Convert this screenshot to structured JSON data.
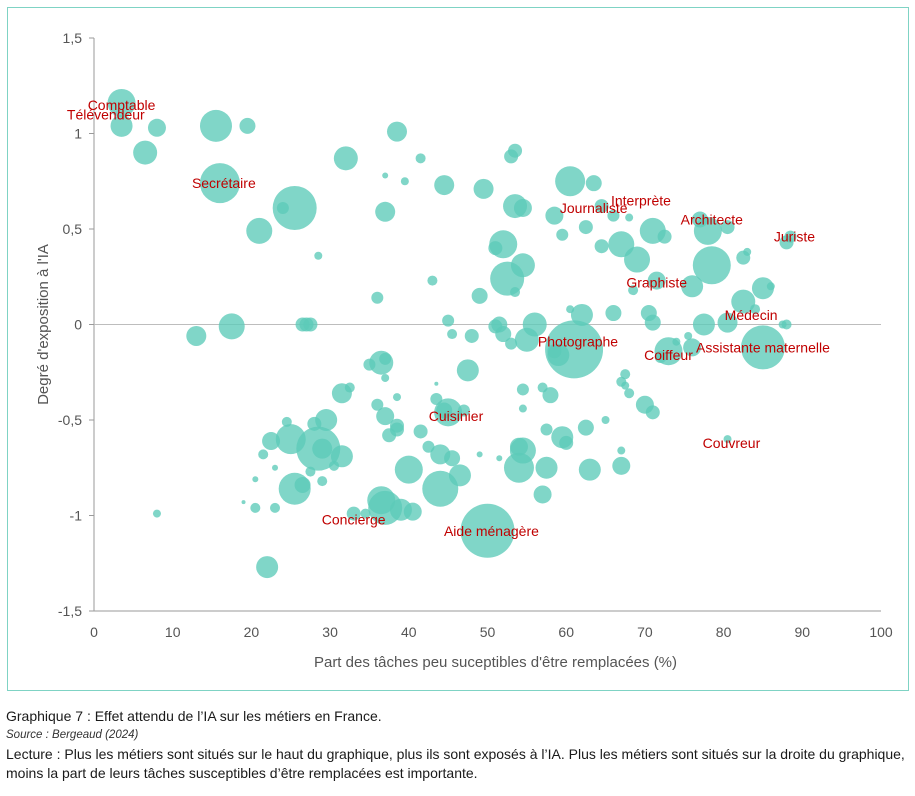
{
  "chart_data": {
    "type": "scatter",
    "variant": "bubble",
    "xlabel": "Part des tâches peu suceptibles d'être remplacées (%)",
    "ylabel": "Degré d'exposition à l'IA",
    "xlim": [
      0,
      100
    ],
    "ylim": [
      -1.5,
      1.5
    ],
    "x_ticks": [
      "0",
      "10",
      "20",
      "30",
      "40",
      "50",
      "60",
      "70",
      "80",
      "90",
      "100"
    ],
    "y_ticks": [
      "1,5",
      "1",
      "0,5",
      "0",
      "-0,5",
      "-1",
      "-1,5"
    ],
    "grid": false,
    "zero_line": true,
    "color": "#5ccbb8",
    "label_color": "#c00000",
    "labels": [
      {
        "text": "Comptable",
        "x": 3.5,
        "y": 1.15
      },
      {
        "text": "Télévendeur",
        "x": 1.5,
        "y": 1.1
      },
      {
        "text": "Secrétaire",
        "x": 16.5,
        "y": 0.74
      },
      {
        "text": "Interprète",
        "x": 69.5,
        "y": 0.65
      },
      {
        "text": "Journaliste",
        "x": 63.5,
        "y": 0.61
      },
      {
        "text": "Architecte",
        "x": 78.5,
        "y": 0.55
      },
      {
        "text": "Juriste",
        "x": 89,
        "y": 0.46
      },
      {
        "text": "Graphiste",
        "x": 71.5,
        "y": 0.22
      },
      {
        "text": "Médecin",
        "x": 83.5,
        "y": 0.05
      },
      {
        "text": "Photographe",
        "x": 61.5,
        "y": -0.09
      },
      {
        "text": "Coiffeur",
        "x": 73,
        "y": -0.16
      },
      {
        "text": "Assistante maternelle",
        "x": 85,
        "y": -0.12
      },
      {
        "text": "Cuisinier",
        "x": 46,
        "y": -0.48
      },
      {
        "text": "Couvreur",
        "x": 81,
        "y": -0.62
      },
      {
        "text": "Concierge",
        "x": 33,
        "y": -1.02
      },
      {
        "text": "Aide ménagère",
        "x": 50.5,
        "y": -1.08
      }
    ],
    "points": [
      {
        "x": 3.5,
        "y": 1.16,
        "r": 14
      },
      {
        "x": 3.5,
        "y": 1.04,
        "r": 11
      },
      {
        "x": 8,
        "y": 1.03,
        "r": 9
      },
      {
        "x": 6.5,
        "y": 0.9,
        "r": 12
      },
      {
        "x": 15.5,
        "y": 1.04,
        "r": 16
      },
      {
        "x": 19.5,
        "y": 1.04,
        "r": 8
      },
      {
        "x": 16,
        "y": 0.74,
        "r": 20
      },
      {
        "x": 25.5,
        "y": 0.61,
        "r": 22
      },
      {
        "x": 24,
        "y": 0.61,
        "r": 6
      },
      {
        "x": 21,
        "y": 0.49,
        "r": 13
      },
      {
        "x": 28.5,
        "y": 0.36,
        "r": 4
      },
      {
        "x": 32,
        "y": 0.87,
        "r": 12
      },
      {
        "x": 38.5,
        "y": 1.01,
        "r": 10
      },
      {
        "x": 41.5,
        "y": 0.87,
        "r": 5
      },
      {
        "x": 37,
        "y": 0.78,
        "r": 3
      },
      {
        "x": 39.5,
        "y": 0.75,
        "r": 4
      },
      {
        "x": 37,
        "y": 0.59,
        "r": 10
      },
      {
        "x": 36,
        "y": 0.14,
        "r": 6
      },
      {
        "x": 43,
        "y": 0.23,
        "r": 5
      },
      {
        "x": 44.5,
        "y": 0.73,
        "r": 10
      },
      {
        "x": 49.5,
        "y": 0.71,
        "r": 10
      },
      {
        "x": 53,
        "y": 0.88,
        "r": 7
      },
      {
        "x": 53.5,
        "y": 0.91,
        "r": 7
      },
      {
        "x": 53.5,
        "y": 0.62,
        "r": 12
      },
      {
        "x": 54.5,
        "y": 0.61,
        "r": 9
      },
      {
        "x": 52,
        "y": 0.42,
        "r": 14
      },
      {
        "x": 51,
        "y": 0.4,
        "r": 7
      },
      {
        "x": 52.5,
        "y": 0.24,
        "r": 17
      },
      {
        "x": 54.5,
        "y": 0.31,
        "r": 12
      },
      {
        "x": 53.5,
        "y": 0.17,
        "r": 5
      },
      {
        "x": 49,
        "y": 0.15,
        "r": 8
      },
      {
        "x": 58.5,
        "y": 0.57,
        "r": 9
      },
      {
        "x": 60.5,
        "y": 0.75,
        "r": 15
      },
      {
        "x": 63.5,
        "y": 0.74,
        "r": 8
      },
      {
        "x": 64.5,
        "y": 0.62,
        "r": 7
      },
      {
        "x": 66,
        "y": 0.57,
        "r": 6
      },
      {
        "x": 68,
        "y": 0.56,
        "r": 4
      },
      {
        "x": 67,
        "y": 0.42,
        "r": 13
      },
      {
        "x": 64.5,
        "y": 0.41,
        "r": 7
      },
      {
        "x": 59.5,
        "y": 0.47,
        "r": 6
      },
      {
        "x": 62.5,
        "y": 0.51,
        "r": 7
      },
      {
        "x": 69,
        "y": 0.34,
        "r": 13
      },
      {
        "x": 71,
        "y": 0.49,
        "r": 13
      },
      {
        "x": 72.5,
        "y": 0.46,
        "r": 7
      },
      {
        "x": 71.5,
        "y": 0.23,
        "r": 9
      },
      {
        "x": 68.5,
        "y": 0.18,
        "r": 5
      },
      {
        "x": 76,
        "y": 0.2,
        "r": 11
      },
      {
        "x": 77,
        "y": 0.55,
        "r": 8
      },
      {
        "x": 78,
        "y": 0.49,
        "r": 14
      },
      {
        "x": 80.5,
        "y": 0.51,
        "r": 7
      },
      {
        "x": 78.5,
        "y": 0.31,
        "r": 19
      },
      {
        "x": 82.5,
        "y": 0.35,
        "r": 7
      },
      {
        "x": 83,
        "y": 0.38,
        "r": 4
      },
      {
        "x": 85,
        "y": 0.19,
        "r": 11
      },
      {
        "x": 82.5,
        "y": 0.12,
        "r": 12
      },
      {
        "x": 80.5,
        "y": 0.01,
        "r": 10
      },
      {
        "x": 77.5,
        "y": 0.0,
        "r": 11
      },
      {
        "x": 84,
        "y": 0.08,
        "r": 5
      },
      {
        "x": 86,
        "y": 0.2,
        "r": 4
      },
      {
        "x": 88,
        "y": 0.43,
        "r": 7
      },
      {
        "x": 88.5,
        "y": 0.46,
        "r": 6
      },
      {
        "x": 87.5,
        "y": 0.0,
        "r": 4
      },
      {
        "x": 88,
        "y": 0.0,
        "r": 5
      },
      {
        "x": 85,
        "y": -0.12,
        "r": 22
      },
      {
        "x": 76,
        "y": -0.12,
        "r": 9
      },
      {
        "x": 73,
        "y": -0.14,
        "r": 14
      },
      {
        "x": 72,
        "y": -0.17,
        "r": 6
      },
      {
        "x": 70.5,
        "y": 0.06,
        "r": 8
      },
      {
        "x": 71,
        "y": 0.01,
        "r": 8
      },
      {
        "x": 66,
        "y": 0.06,
        "r": 8
      },
      {
        "x": 62,
        "y": 0.05,
        "r": 11
      },
      {
        "x": 60.5,
        "y": 0.08,
        "r": 4
      },
      {
        "x": 61,
        "y": -0.13,
        "r": 29
      },
      {
        "x": 59,
        "y": -0.16,
        "r": 11
      },
      {
        "x": 58.5,
        "y": -0.14,
        "r": 7
      },
      {
        "x": 56,
        "y": 0.0,
        "r": 12
      },
      {
        "x": 55,
        "y": -0.08,
        "r": 12
      },
      {
        "x": 53,
        "y": -0.1,
        "r": 6
      },
      {
        "x": 52,
        "y": -0.05,
        "r": 8
      },
      {
        "x": 51.5,
        "y": 0.0,
        "r": 8
      },
      {
        "x": 51,
        "y": -0.01,
        "r": 7
      },
      {
        "x": 48,
        "y": -0.06,
        "r": 7
      },
      {
        "x": 45.5,
        "y": -0.05,
        "r": 5
      },
      {
        "x": 45,
        "y": 0.02,
        "r": 6
      },
      {
        "x": 47.5,
        "y": -0.24,
        "r": 11
      },
      {
        "x": 54.5,
        "y": -0.34,
        "r": 6
      },
      {
        "x": 54.5,
        "y": -0.44,
        "r": 4
      },
      {
        "x": 57,
        "y": -0.33,
        "r": 5
      },
      {
        "x": 58,
        "y": -0.37,
        "r": 8
      },
      {
        "x": 57.5,
        "y": -0.55,
        "r": 6
      },
      {
        "x": 59.5,
        "y": -0.59,
        "r": 11
      },
      {
        "x": 60,
        "y": -0.62,
        "r": 7
      },
      {
        "x": 62.5,
        "y": -0.54,
        "r": 8
      },
      {
        "x": 65,
        "y": -0.5,
        "r": 4
      },
      {
        "x": 67,
        "y": -0.3,
        "r": 5
      },
      {
        "x": 67.5,
        "y": -0.26,
        "r": 5
      },
      {
        "x": 67.5,
        "y": -0.32,
        "r": 4
      },
      {
        "x": 68,
        "y": -0.36,
        "r": 5
      },
      {
        "x": 70,
        "y": -0.42,
        "r": 9
      },
      {
        "x": 71,
        "y": -0.46,
        "r": 7
      },
      {
        "x": 67,
        "y": -0.66,
        "r": 4
      },
      {
        "x": 67,
        "y": -0.74,
        "r": 9
      },
      {
        "x": 63,
        "y": -0.76,
        "r": 11
      },
      {
        "x": 57.5,
        "y": -0.75,
        "r": 11
      },
      {
        "x": 54.5,
        "y": -0.66,
        "r": 13
      },
      {
        "x": 54,
        "y": -0.64,
        "r": 9
      },
      {
        "x": 54,
        "y": -0.75,
        "r": 15
      },
      {
        "x": 57,
        "y": -0.89,
        "r": 9
      },
      {
        "x": 51.5,
        "y": -0.7,
        "r": 3
      },
      {
        "x": 50,
        "y": -1.08,
        "r": 27
      },
      {
        "x": 45,
        "y": -0.46,
        "r": 14
      },
      {
        "x": 44.5,
        "y": -0.45,
        "r": 8
      },
      {
        "x": 47,
        "y": -0.45,
        "r": 6
      },
      {
        "x": 43.5,
        "y": -0.39,
        "r": 6
      },
      {
        "x": 43.5,
        "y": -0.31,
        "r": 2
      },
      {
        "x": 44,
        "y": -0.68,
        "r": 10
      },
      {
        "x": 45.5,
        "y": -0.7,
        "r": 8
      },
      {
        "x": 46.5,
        "y": -0.79,
        "r": 11
      },
      {
        "x": 44,
        "y": -0.86,
        "r": 18
      },
      {
        "x": 42.5,
        "y": -0.64,
        "r": 6
      },
      {
        "x": 41.5,
        "y": -0.56,
        "r": 7
      },
      {
        "x": 40,
        "y": -0.76,
        "r": 14
      },
      {
        "x": 38.5,
        "y": -0.55,
        "r": 7
      },
      {
        "x": 38.5,
        "y": -0.53,
        "r": 7
      },
      {
        "x": 37.5,
        "y": -0.58,
        "r": 7
      },
      {
        "x": 37,
        "y": -0.48,
        "r": 9
      },
      {
        "x": 36,
        "y": -0.42,
        "r": 6
      },
      {
        "x": 36.5,
        "y": -0.2,
        "r": 12
      },
      {
        "x": 37,
        "y": -0.28,
        "r": 4
      },
      {
        "x": 37,
        "y": -0.18,
        "r": 6
      },
      {
        "x": 35,
        "y": -0.21,
        "r": 6
      },
      {
        "x": 38.5,
        "y": -0.38,
        "r": 4
      },
      {
        "x": 31.5,
        "y": -0.36,
        "r": 10
      },
      {
        "x": 32.5,
        "y": -0.33,
        "r": 5
      },
      {
        "x": 29.5,
        "y": -0.5,
        "r": 11
      },
      {
        "x": 28,
        "y": -0.52,
        "r": 7
      },
      {
        "x": 28.5,
        "y": -0.65,
        "r": 22
      },
      {
        "x": 29,
        "y": -0.65,
        "r": 10
      },
      {
        "x": 31.5,
        "y": -0.69,
        "r": 11
      },
      {
        "x": 30.5,
        "y": -0.74,
        "r": 5
      },
      {
        "x": 27.5,
        "y": -0.77,
        "r": 5
      },
      {
        "x": 25,
        "y": -0.6,
        "r": 15
      },
      {
        "x": 24.5,
        "y": -0.51,
        "r": 5
      },
      {
        "x": 25.5,
        "y": -0.86,
        "r": 16
      },
      {
        "x": 26.5,
        "y": -0.84,
        "r": 8
      },
      {
        "x": 29,
        "y": -0.82,
        "r": 5
      },
      {
        "x": 22.5,
        "y": -0.61,
        "r": 9
      },
      {
        "x": 21.5,
        "y": -0.68,
        "r": 5
      },
      {
        "x": 23,
        "y": -0.75,
        "r": 3
      },
      {
        "x": 20.5,
        "y": -0.81,
        "r": 3
      },
      {
        "x": 20.5,
        "y": -0.96,
        "r": 5
      },
      {
        "x": 19,
        "y": -0.93,
        "r": 2
      },
      {
        "x": 23,
        "y": -0.96,
        "r": 5
      },
      {
        "x": 22,
        "y": -1.27,
        "r": 11
      },
      {
        "x": 8,
        "y": -0.99,
        "r": 4
      },
      {
        "x": 33,
        "y": -0.99,
        "r": 7
      },
      {
        "x": 34.5,
        "y": -0.99,
        "r": 5
      },
      {
        "x": 36.5,
        "y": -0.92,
        "r": 14
      },
      {
        "x": 37,
        "y": -0.96,
        "r": 17
      },
      {
        "x": 39,
        "y": -0.97,
        "r": 11
      },
      {
        "x": 40.5,
        "y": -0.98,
        "r": 9
      },
      {
        "x": 13,
        "y": -0.06,
        "r": 10
      },
      {
        "x": 17.5,
        "y": -0.01,
        "r": 13
      },
      {
        "x": 26.5,
        "y": 0.0,
        "r": 7
      },
      {
        "x": 27,
        "y": 0.0,
        "r": 7
      },
      {
        "x": 27.5,
        "y": 0.0,
        "r": 7
      },
      {
        "x": 49,
        "y": -0.68,
        "r": 3
      },
      {
        "x": 80.5,
        "y": -0.6,
        "r": 4
      },
      {
        "x": 74,
        "y": -0.09,
        "r": 4
      },
      {
        "x": 75.5,
        "y": -0.06,
        "r": 4
      }
    ]
  },
  "caption": {
    "title": "Graphique 7 : Effet attendu de l’IA sur les métiers en France.",
    "source": "Source : Bergeaud (2024)",
    "note": "Lecture : Plus les métiers sont situés sur le haut du graphique, plus ils sont exposés à l’IA. Plus les métiers sont situés sur la droite du graphique, moins la part de leurs tâches susceptibles d’être remplacées est importante."
  }
}
